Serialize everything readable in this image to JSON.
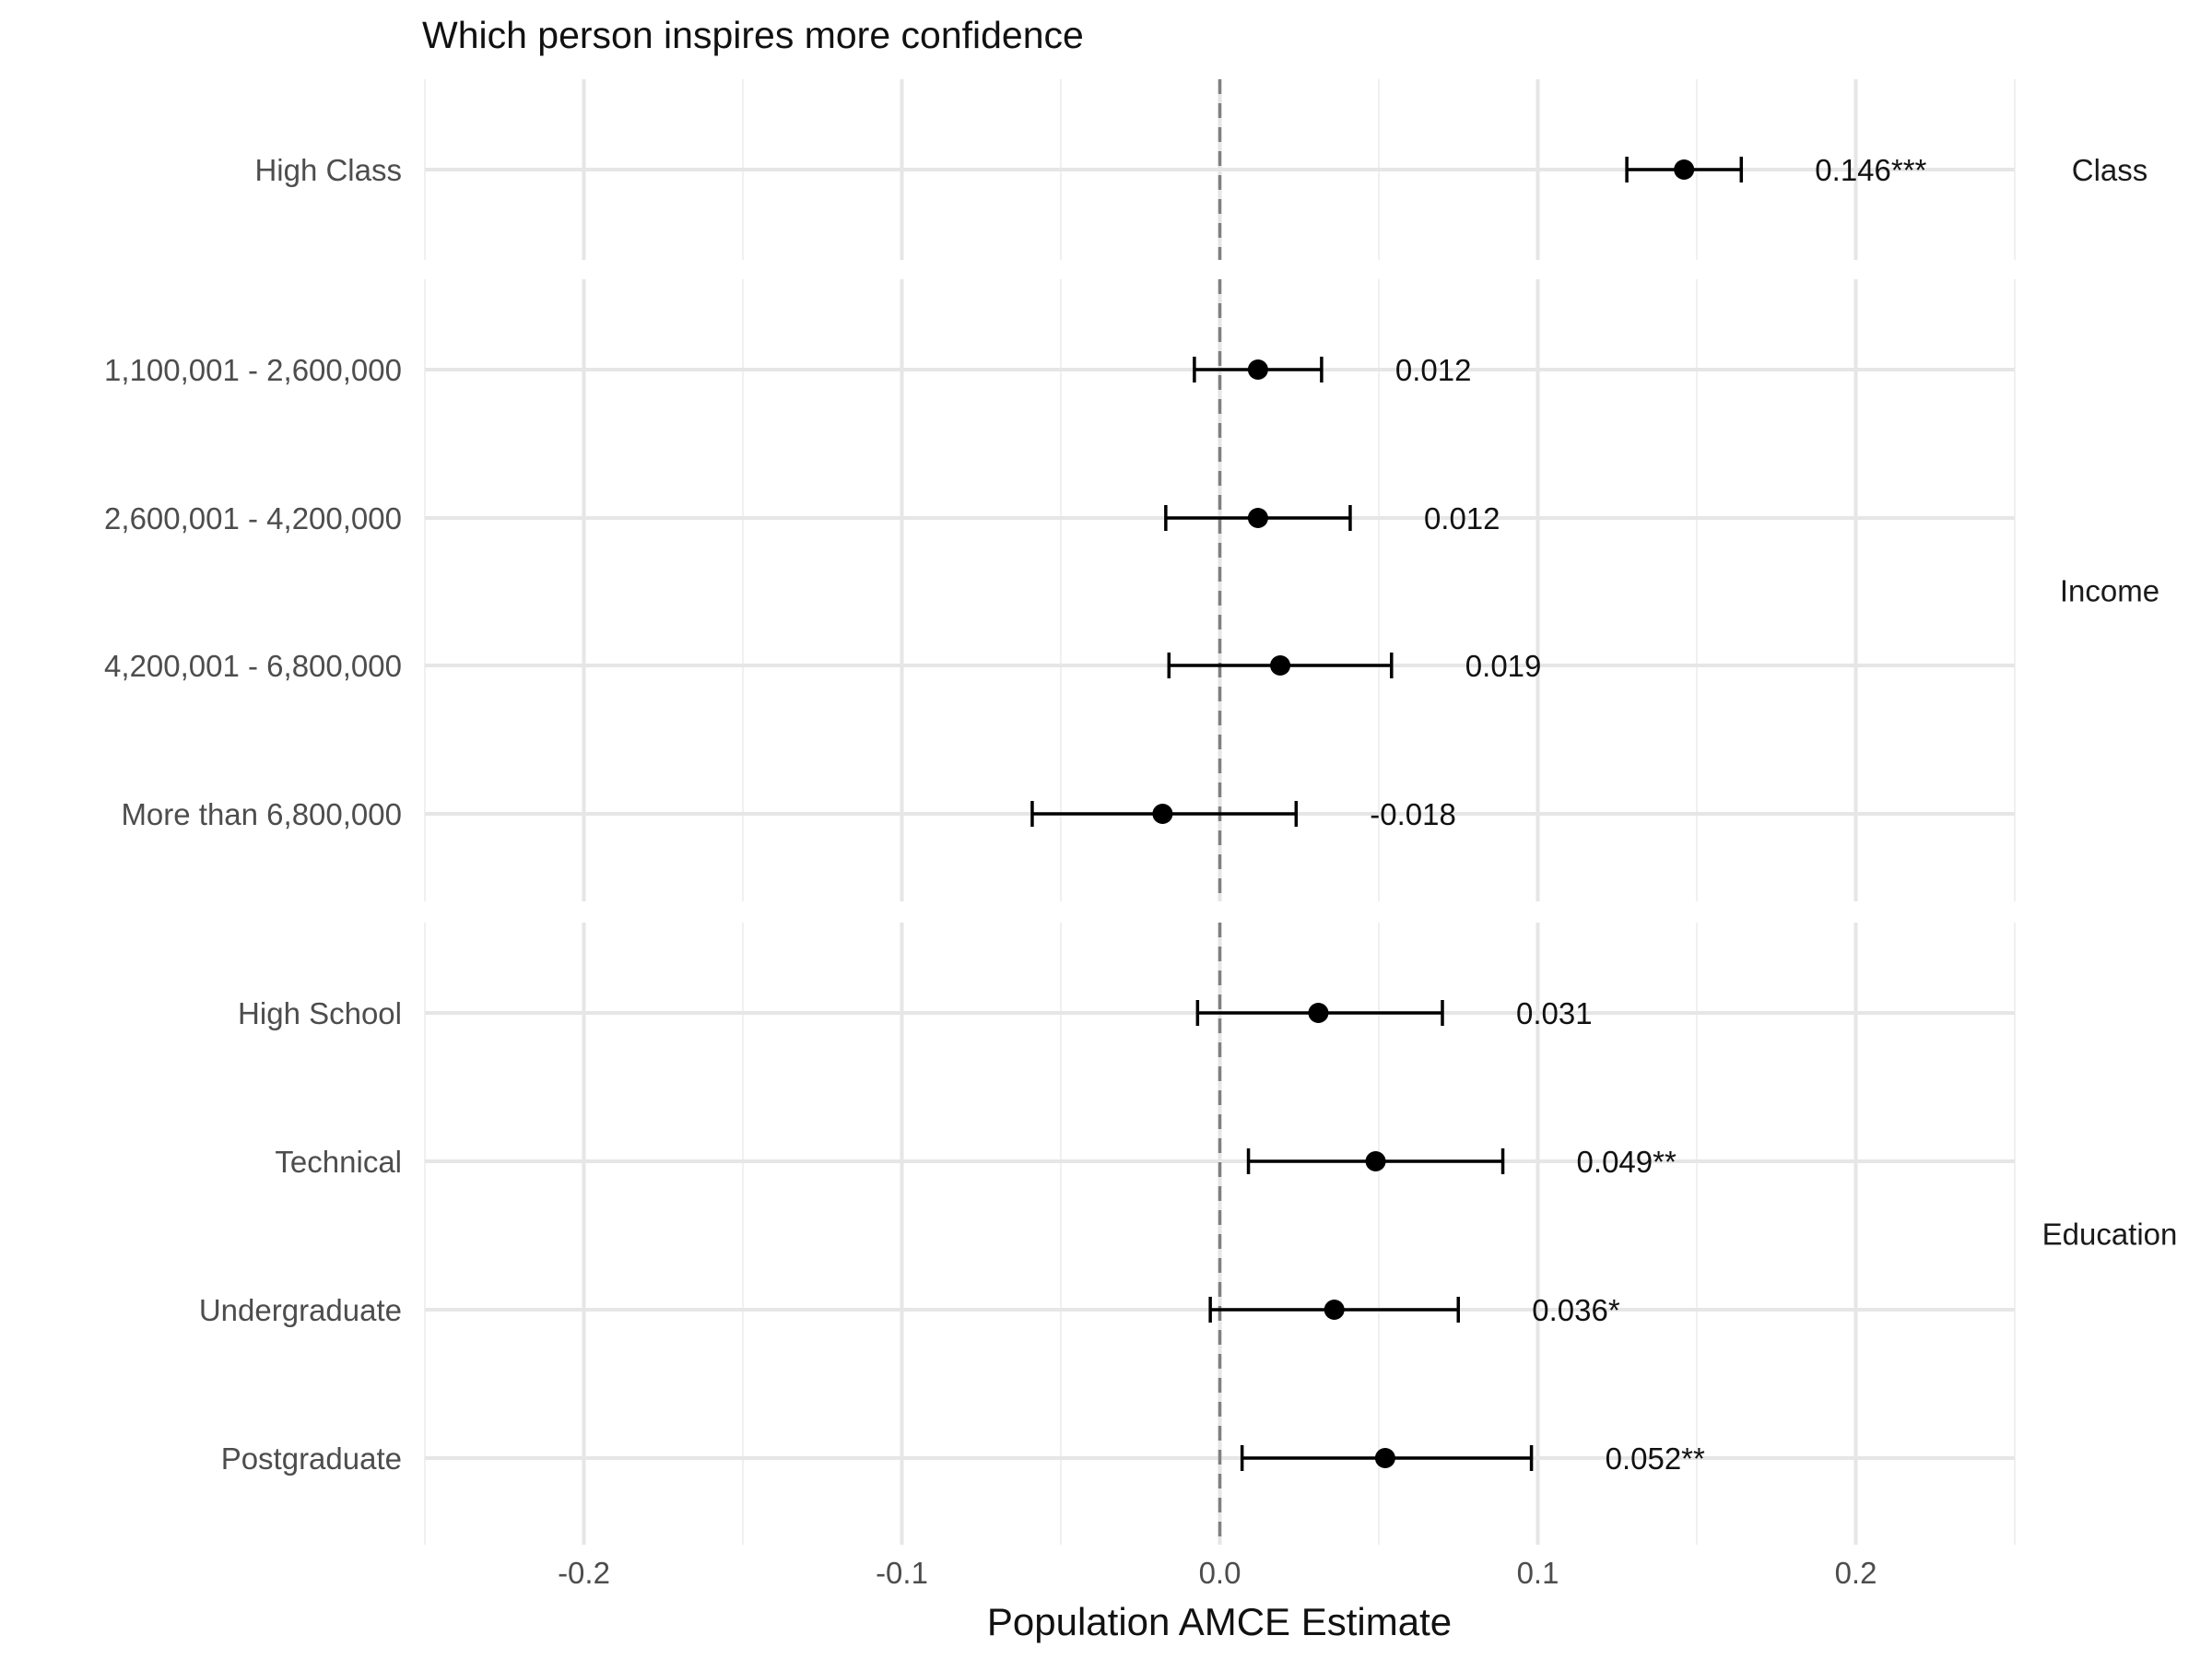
{
  "chart_data": {
    "type": "scatter",
    "subtype": "coefficient-plot-with-error-bars",
    "title": "Which person inspires more confidence",
    "xlabel": "Population AMCE Estimate",
    "ylabel": "",
    "xlim": [
      -0.25,
      0.25
    ],
    "x_ticks": [
      -0.2,
      -0.1,
      0.0,
      0.1,
      0.2
    ],
    "x_tick_labels": [
      "-0.2",
      "-0.1",
      "0.0",
      "0.1",
      "0.2"
    ],
    "reference_line": 0,
    "grid": true,
    "facets": [
      {
        "name": "Class",
        "rows": [
          {
            "label": "High Class",
            "estimate": 0.146,
            "lower": 0.128,
            "upper": 0.164,
            "text": "0.146***"
          }
        ]
      },
      {
        "name": "Income",
        "rows": [
          {
            "label": "1,100,001 - 2,600,000",
            "estimate": 0.012,
            "lower": -0.008,
            "upper": 0.032,
            "text": "0.012"
          },
          {
            "label": "2,600,001 - 4,200,000",
            "estimate": 0.012,
            "lower": -0.017,
            "upper": 0.041,
            "text": "0.012"
          },
          {
            "label": "4,200,001 - 6,800,000",
            "estimate": 0.019,
            "lower": -0.016,
            "upper": 0.054,
            "text": "0.019"
          },
          {
            "label": "More than 6,800,000",
            "estimate": -0.018,
            "lower": -0.059,
            "upper": 0.024,
            "text": "-0.018"
          }
        ]
      },
      {
        "name": "Education",
        "rows": [
          {
            "label": "High School",
            "estimate": 0.031,
            "lower": -0.007,
            "upper": 0.07,
            "text": "0.031"
          },
          {
            "label": "Technical",
            "estimate": 0.049,
            "lower": 0.009,
            "upper": 0.089,
            "text": "0.049**"
          },
          {
            "label": "Undergraduate",
            "estimate": 0.036,
            "lower": -0.003,
            "upper": 0.075,
            "text": "0.036*"
          },
          {
            "label": "Postgraduate",
            "estimate": 0.052,
            "lower": 0.007,
            "upper": 0.098,
            "text": "0.052**"
          }
        ]
      }
    ]
  }
}
